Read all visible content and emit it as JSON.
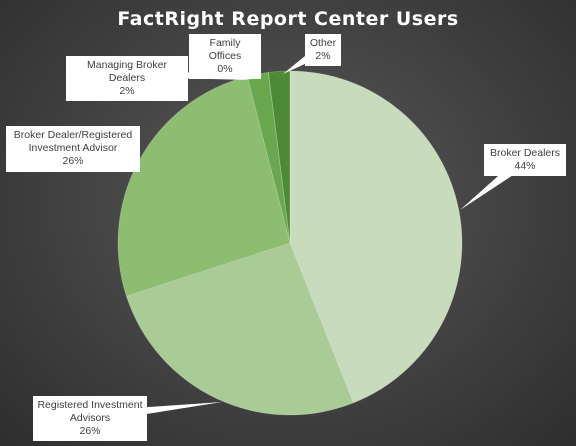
{
  "chart_data": {
    "type": "pie",
    "title": "FactRight Report Center Users",
    "categories": [
      "Broker Dealers",
      "Registered Investment Advisors",
      "Broker Dealer/Registered Investment Advisor",
      "Managing Broker Dealers",
      "Family Offices",
      "Other"
    ],
    "values": [
      44,
      26,
      26,
      2,
      0,
      2
    ],
    "value_labels": [
      "44%",
      "26%",
      "26%",
      "2%",
      "0%",
      "2%"
    ],
    "colors": [
      "#c8dbbd",
      "#a9cb95",
      "#8dbd70",
      "#6aa84f",
      "#5a9a3e",
      "#4d8a35"
    ]
  }
}
